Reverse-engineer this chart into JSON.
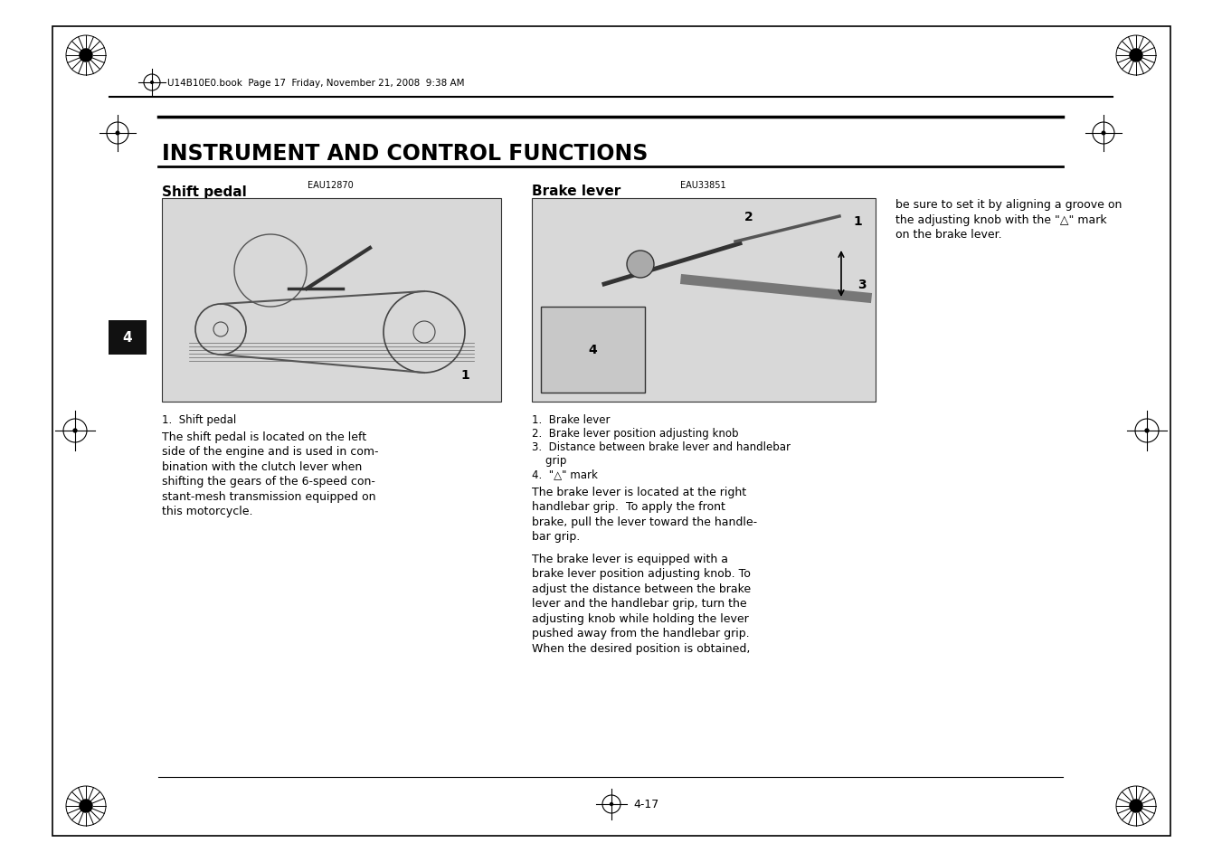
{
  "bg_color": "#ffffff",
  "header_text": "U14B10E0.book  Page 17  Friday, November 21, 2008  9:38 AM",
  "title": "INSTRUMENT AND CONTROL FUNCTIONS",
  "section1_label": "Shift pedal",
  "section1_code": "EAU12870",
  "section2_label": "Brake lever",
  "section2_code": "EAU33851",
  "shift_caption": "1.  Shift pedal",
  "shift_body_lines": [
    "The shift pedal is located on the left",
    "side of the engine and is used in com-",
    "bination with the clutch lever when",
    "shifting the gears of the 6-speed con-",
    "stant-mesh transmission equipped on",
    "this motorcycle."
  ],
  "brake_list_lines": [
    "1.  Brake lever",
    "2.  Brake lever position adjusting knob",
    "3.  Distance between brake lever and handlebar",
    "    grip",
    "4.  \"△\" mark"
  ],
  "brake_body1_lines": [
    "The brake lever is located at the right",
    "handlebar grip.  To apply the front",
    "brake, pull the lever toward the handle-",
    "bar grip."
  ],
  "brake_body2_lines": [
    "The brake lever is equipped with a",
    "brake lever position adjusting knob. To",
    "adjust the distance between the brake",
    "lever and the handlebar grip, turn the",
    "adjusting knob while holding the lever",
    "pushed away from the handlebar grip.",
    "When the desired position is obtained,"
  ],
  "right_col_lines": [
    "be sure to set it by aligning a groove on",
    "the adjusting knob with the \"△\" mark",
    "on the brake lever."
  ],
  "page_number": "4-17",
  "tab_label": "4"
}
